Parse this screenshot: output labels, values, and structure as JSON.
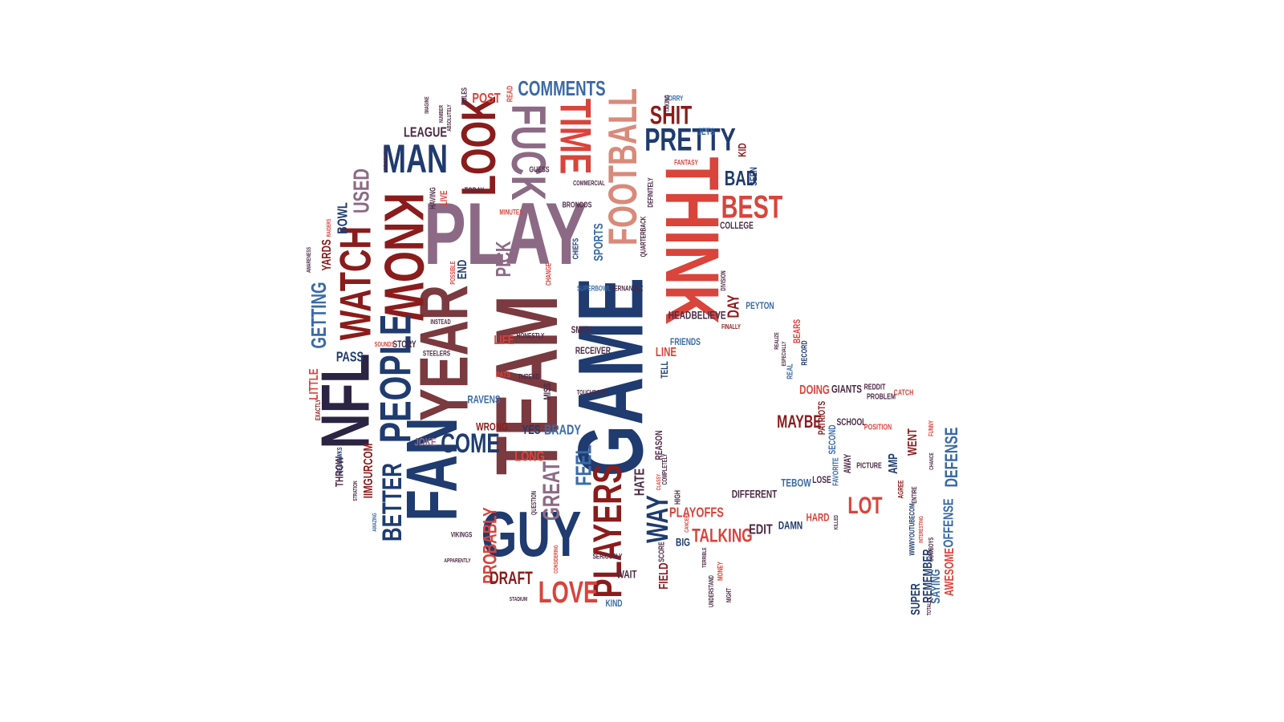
{
  "image": {
    "kind": "word-cloud",
    "shape": "football-helmet",
    "background": "#ffffff",
    "palette": {
      "navy": "#1f3b6f",
      "red": "#8a1c1c",
      "coral": "#d9443b",
      "mauve": "#8c6a85",
      "blue": "#3a6aa6",
      "plum": "#4b2a45"
    }
  },
  "words": [
    {
      "text": "PLAY",
      "color": "#8c6a85",
      "rotate": 0
    },
    {
      "text": "TEAM",
      "color": "#7a3a3f",
      "rotate": -90
    },
    {
      "text": "GAME",
      "color": "#1f3b6f",
      "rotate": -90
    },
    {
      "text": "THINK",
      "color": "#d9443b",
      "rotate": 90
    },
    {
      "text": "FAN",
      "color": "#1f3b6f",
      "rotate": -90
    },
    {
      "text": "GUY",
      "color": "#1f3b6f",
      "rotate": 0
    },
    {
      "text": "NFL",
      "color": "#2b2443",
      "rotate": -90
    },
    {
      "text": "YEAR",
      "color": "#7a3a3f",
      "rotate": -90
    },
    {
      "text": "KNOW",
      "color": "#8a1c1c",
      "rotate": 90
    },
    {
      "text": "PEOPLE",
      "color": "#1f3b6f",
      "rotate": -90
    },
    {
      "text": "LOOK",
      "color": "#8a1c1c",
      "rotate": -90
    },
    {
      "text": "FUCK",
      "color": "#8c6a85",
      "rotate": 90
    },
    {
      "text": "TIME",
      "color": "#d9443b",
      "rotate": 90
    },
    {
      "text": "FOOTBALL",
      "color": "#d98a7a",
      "rotate": -90
    },
    {
      "text": "WATCH",
      "color": "#8a1c1c",
      "rotate": -90
    },
    {
      "text": "PLAYERS",
      "color": "#8a1c1c",
      "rotate": -90
    },
    {
      "text": "MAN",
      "color": "#1f3b6f",
      "rotate": 0
    },
    {
      "text": "PRETTY",
      "color": "#1f3b6f",
      "rotate": 0
    },
    {
      "text": "SHIT",
      "color": "#8a1c1c",
      "rotate": 0
    },
    {
      "text": "BEST",
      "color": "#d9443b",
      "rotate": 0
    },
    {
      "text": "COMMENTS",
      "color": "#3a6aa6",
      "rotate": 0
    },
    {
      "text": "LOVE",
      "color": "#d9443b",
      "rotate": 0
    },
    {
      "text": "WAY",
      "color": "#1f3b6f",
      "rotate": -90
    },
    {
      "text": "COME",
      "color": "#1f3b6f",
      "rotate": 0
    },
    {
      "text": "BETTER",
      "color": "#1f3b6f",
      "rotate": -90
    },
    {
      "text": "GETTING",
      "color": "#3a6aa6",
      "rotate": -90
    },
    {
      "text": "PROBABLY",
      "color": "#d9443b",
      "rotate": -90
    },
    {
      "text": "GREAT",
      "color": "#8c6a85",
      "rotate": -90
    },
    {
      "text": "FEEL",
      "color": "#3a6aa6",
      "rotate": -90
    },
    {
      "text": "LOT",
      "color": "#d9443b",
      "rotate": 0
    },
    {
      "text": "DEFENSE",
      "color": "#3a6aa6",
      "rotate": -90
    },
    {
      "text": "TALKING",
      "color": "#d9443b",
      "rotate": 0
    },
    {
      "text": "BAD",
      "color": "#1f3b6f",
      "rotate": 0
    },
    {
      "text": "MAYBE",
      "color": "#8a1c1c",
      "rotate": 0
    },
    {
      "text": "LEAGUE",
      "color": "#4b2a45",
      "rotate": 0
    },
    {
      "text": "PICK",
      "color": "#8c6a85",
      "rotate": -90
    },
    {
      "text": "LONG",
      "color": "#d9443b",
      "rotate": 0
    },
    {
      "text": "USED",
      "color": "#8c6a85",
      "rotate": -90
    },
    {
      "text": "DRAFT",
      "color": "#8a1c1c",
      "rotate": 0
    },
    {
      "text": "HATE",
      "color": "#4b2a45",
      "rotate": -90
    },
    {
      "text": "FIELD",
      "color": "#8a1c1c",
      "rotate": -90
    },
    {
      "text": "PLAYOFFS",
      "color": "#d9443b",
      "rotate": 0
    },
    {
      "text": "PASS",
      "color": "#1f3b6f",
      "rotate": 0
    },
    {
      "text": "YARDS",
      "color": "#8a1c1c",
      "rotate": -90
    },
    {
      "text": "DAY",
      "color": "#8a1c1c",
      "rotate": -90
    },
    {
      "text": "POST",
      "color": "#d9443b",
      "rotate": 0
    },
    {
      "text": "BRADY",
      "color": "#3a6aa6",
      "rotate": 0
    },
    {
      "text": "RAVENS",
      "color": "#3a6aa6",
      "rotate": 0
    },
    {
      "text": "WRONG",
      "color": "#8a1c1c",
      "rotate": 0
    },
    {
      "text": "EDIT",
      "color": "#4b2a45",
      "rotate": 0
    },
    {
      "text": "IIMGURCOM",
      "color": "#8a1c1c",
      "rotate": -90
    },
    {
      "text": "THROW",
      "color": "#4b2a45",
      "rotate": -90
    },
    {
      "text": "BOWL",
      "color": "#1f3b6f",
      "rotate": -90
    },
    {
      "text": "DOING",
      "color": "#d9443b",
      "rotate": 0
    },
    {
      "text": "GIANTS",
      "color": "#4b2a45",
      "rotate": 0
    },
    {
      "text": "WENT",
      "color": "#8a1c1c",
      "rotate": -90
    },
    {
      "text": "OFFENSE",
      "color": "#3a6aa6",
      "rotate": -90
    },
    {
      "text": "AWESOME",
      "color": "#d9443b",
      "rotate": -90
    },
    {
      "text": "SAYING",
      "color": "#3a6aa6",
      "rotate": -90
    },
    {
      "text": "REMEMBER",
      "color": "#1f3b6f",
      "rotate": -90
    },
    {
      "text": "SUPER",
      "color": "#1f3b6f",
      "rotate": -90
    },
    {
      "text": "HARD",
      "color": "#d9443b",
      "rotate": 0
    },
    {
      "text": "DAMN",
      "color": "#1f3b6f",
      "rotate": 0
    },
    {
      "text": "DIFFERENT",
      "color": "#4b2a45",
      "rotate": 0
    },
    {
      "text": "TEBOW",
      "color": "#3a6aa6",
      "rotate": 0
    },
    {
      "text": "LOSE",
      "color": "#4b2a45",
      "rotate": 0
    },
    {
      "text": "AMP",
      "color": "#1f3b6f",
      "rotate": -90
    },
    {
      "text": "JOKE",
      "color": "#8c6a85",
      "rotate": 0
    },
    {
      "text": "YES",
      "color": "#1f3b6f",
      "rotate": 0
    },
    {
      "text": "LITTLE",
      "color": "#d9443b",
      "rotate": -90
    },
    {
      "text": "BELIEVE",
      "color": "#4b2a45",
      "rotate": 0
    },
    {
      "text": "HEAD",
      "color": "#4b2a45",
      "rotate": 0
    },
    {
      "text": "LINE",
      "color": "#d9443b",
      "rotate": 0
    },
    {
      "text": "TELL",
      "color": "#1f3b6f",
      "rotate": -90
    },
    {
      "text": "REASON",
      "color": "#4b2a45",
      "rotate": -90
    },
    {
      "text": "KID",
      "color": "#8a1c1c",
      "rotate": -90
    },
    {
      "text": "SEEN",
      "color": "#1f3b6f",
      "rotate": -90
    },
    {
      "text": "COLLEGE",
      "color": "#4b2a45",
      "rotate": 0
    },
    {
      "text": "PEYTON",
      "color": "#3a6aa6",
      "rotate": 0
    },
    {
      "text": "FRIENDS",
      "color": "#3a6aa6",
      "rotate": 0
    },
    {
      "text": "JETS",
      "color": "#3a6aa6",
      "rotate": 0
    },
    {
      "text": "RECEIVER",
      "color": "#4b2a45",
      "rotate": 0
    },
    {
      "text": "SMITH",
      "color": "#4b2a45",
      "rotate": 0
    },
    {
      "text": "SPORTS",
      "color": "#3a6aa6",
      "rotate": -90
    },
    {
      "text": "END",
      "color": "#1f3b6f",
      "rotate": -90
    },
    {
      "text": "LIFE",
      "color": "#d9443b",
      "rotate": 0
    },
    {
      "text": "MISS",
      "color": "#4b2a45",
      "rotate": -90
    },
    {
      "text": "STORY",
      "color": "#4b2a45",
      "rotate": 0
    },
    {
      "text": "BIG",
      "color": "#1f3b6f",
      "rotate": 0
    },
    {
      "text": "WAIT",
      "color": "#4b2a45",
      "rotate": 0
    },
    {
      "text": "KIND",
      "color": "#3a6aa6",
      "rotate": 0
    },
    {
      "text": "SCORE",
      "color": "#4b2a45",
      "rotate": -90
    },
    {
      "text": "HIGH",
      "color": "#4b2a45",
      "rotate": -90
    },
    {
      "text": "SCHOOL",
      "color": "#4b2a45",
      "rotate": 0
    },
    {
      "text": "SECOND",
      "color": "#3a6aa6",
      "rotate": -90
    },
    {
      "text": "AWAY",
      "color": "#4b2a45",
      "rotate": -90
    },
    {
      "text": "PATRIOTS",
      "color": "#8a1c1c",
      "rotate": -90
    },
    {
      "text": "FAVORITE",
      "color": "#3a6aa6",
      "rotate": -90
    },
    {
      "text": "PICTURE",
      "color": "#4b2a45",
      "rotate": 0
    },
    {
      "text": "REAL",
      "color": "#3a6aa6",
      "rotate": -90
    },
    {
      "text": "RECORD",
      "color": "#1f3b6f",
      "rotate": -90
    },
    {
      "text": "REDDIT",
      "color": "#4b2a45",
      "rotate": 0
    },
    {
      "text": "PROBLEM",
      "color": "#4b2a45",
      "rotate": 0
    },
    {
      "text": "CATCH",
      "color": "#d9443b",
      "rotate": 0
    },
    {
      "text": "POSITION",
      "color": "#d9443b",
      "rotate": 0
    },
    {
      "text": "BEARS",
      "color": "#d9443b",
      "rotate": -90
    },
    {
      "text": "GUESS",
      "color": "#4b2a45",
      "rotate": 0
    },
    {
      "text": "TODAY",
      "color": "#4b2a45",
      "rotate": 0
    },
    {
      "text": "LIVE",
      "color": "#d9443b",
      "rotate": -90
    },
    {
      "text": "HAVING",
      "color": "#4b2a45",
      "rotate": -90
    },
    {
      "text": "CHIEFS",
      "color": "#1f3b6f",
      "rotate": -90
    },
    {
      "text": "BRONCOS",
      "color": "#4b2a45",
      "rotate": 0
    },
    {
      "text": "COMMERCIAL",
      "color": "#4b2a45",
      "rotate": 0
    },
    {
      "text": "QUARTERBACK",
      "color": "#4b2a45",
      "rotate": -90
    },
    {
      "text": "DEFINITELY",
      "color": "#4b2a45",
      "rotate": -90
    },
    {
      "text": "FANTASY",
      "color": "#d9443b",
      "rotate": 0
    },
    {
      "text": "SORRY",
      "color": "#3a6aa6",
      "rotate": 0
    },
    {
      "text": "TAKING",
      "color": "#4b2a45",
      "rotate": -90
    },
    {
      "text": "RULES",
      "color": "#4b2a45",
      "rotate": -90
    },
    {
      "text": "READ",
      "color": "#d9443b",
      "rotate": -90
    },
    {
      "text": "MINUTES",
      "color": "#d9443b",
      "rotate": 0
    },
    {
      "text": "CHANGE",
      "color": "#d9443b",
      "rotate": -90
    },
    {
      "text": "POSSIBLE",
      "color": "#d9443b",
      "rotate": -90
    },
    {
      "text": "SUPERBOWL",
      "color": "#3a6aa6",
      "rotate": 0
    },
    {
      "text": "HERNANDEZ",
      "color": "#4b2a45",
      "rotate": 0
    },
    {
      "text": "DIVISION",
      "color": "#4b2a45",
      "rotate": -90
    },
    {
      "text": "FINALLY",
      "color": "#8a1c1c",
      "rotate": 0
    },
    {
      "text": "HONESTLY",
      "color": "#4b2a45",
      "rotate": 0
    },
    {
      "text": "INSTEAD",
      "color": "#4b2a45",
      "rotate": 0
    },
    {
      "text": "SOUNDS",
      "color": "#d9443b",
      "rotate": 0
    },
    {
      "text": "STEELERS",
      "color": "#4b2a45",
      "rotate": 0
    },
    {
      "text": "PATS",
      "color": "#d9443b",
      "rotate": 0
    },
    {
      "text": "THREAD",
      "color": "#4b2a45",
      "rotate": 0
    },
    {
      "text": "TOUCHDOWN",
      "color": "#4b2a45",
      "rotate": 0
    },
    {
      "text": "EXACTLY",
      "color": "#8a1c1c",
      "rotate": -90
    },
    {
      "text": "SEAHAWKS",
      "color": "#1f3b6f",
      "rotate": -90
    },
    {
      "text": "STRATION",
      "color": "#4b2a45",
      "rotate": -90
    },
    {
      "text": "AMAZING",
      "color": "#3a6aa6",
      "rotate": -90
    },
    {
      "text": "VIKINGS",
      "color": "#4b2a45",
      "rotate": 0
    },
    {
      "text": "APPARENTLY",
      "color": "#4b2a45",
      "rotate": 0
    },
    {
      "text": "STADIUM",
      "color": "#4b2a45",
      "rotate": 0
    },
    {
      "text": "SERIOUSLY",
      "color": "#4b2a45",
      "rotate": 0
    },
    {
      "text": "QUESTION",
      "color": "#4b2a45",
      "rotate": -90
    },
    {
      "text": "CONSIDERING",
      "color": "#d9443b",
      "rotate": -90
    },
    {
      "text": "COMPLETELY",
      "color": "#4b2a45",
      "rotate": -90
    },
    {
      "text": "CLASSY",
      "color": "#d9443b",
      "rotate": -90
    },
    {
      "text": "CANCER",
      "color": "#d9443b",
      "rotate": -90
    },
    {
      "text": "TERRIBLE",
      "color": "#4b2a45",
      "rotate": -90
    },
    {
      "text": "UNDERSTAND",
      "color": "#4b2a45",
      "rotate": -90
    },
    {
      "text": "MONEY",
      "color": "#d9443b",
      "rotate": -90
    },
    {
      "text": "NIGHT",
      "color": "#4b2a45",
      "rotate": -90
    },
    {
      "text": "KILLED",
      "color": "#4b2a45",
      "rotate": -90
    },
    {
      "text": "WWWYOUTUBECOM",
      "color": "#1f3b6f",
      "rotate": -90
    },
    {
      "text": "INTERESTING",
      "color": "#d9443b",
      "rotate": -90
    },
    {
      "text": "AGREE",
      "color": "#8a1c1c",
      "rotate": -90
    },
    {
      "text": "ENTIRE",
      "color": "#4b2a45",
      "rotate": -90
    },
    {
      "text": "COWBOYS",
      "color": "#4b2a45",
      "rotate": -90
    },
    {
      "text": "TOTALLY",
      "color": "#4b2a45",
      "rotate": -90
    },
    {
      "text": "CHANCE",
      "color": "#4b2a45",
      "rotate": -90
    },
    {
      "text": "FUNNY",
      "color": "#d9443b",
      "rotate": -90
    },
    {
      "text": "ESPECIALLY",
      "color": "#4b2a45",
      "rotate": -90
    },
    {
      "text": "REALIZE",
      "color": "#4b2a45",
      "rotate": -90
    },
    {
      "text": "IMAGINE",
      "color": "#4b2a45",
      "rotate": -90
    },
    {
      "text": "NUMBER",
      "color": "#4b2a45",
      "rotate": -90
    },
    {
      "text": "ABSOLUTELY",
      "color": "#4b2a45",
      "rotate": -90
    },
    {
      "text": "OBVIOUSLY",
      "color": "#4b2a45",
      "rotate": -90
    },
    {
      "text": "RAIDERS",
      "color": "#d9443b",
      "rotate": -90
    },
    {
      "text": "AWARENESS",
      "color": "#4b2a45",
      "rotate": -90
    }
  ]
}
